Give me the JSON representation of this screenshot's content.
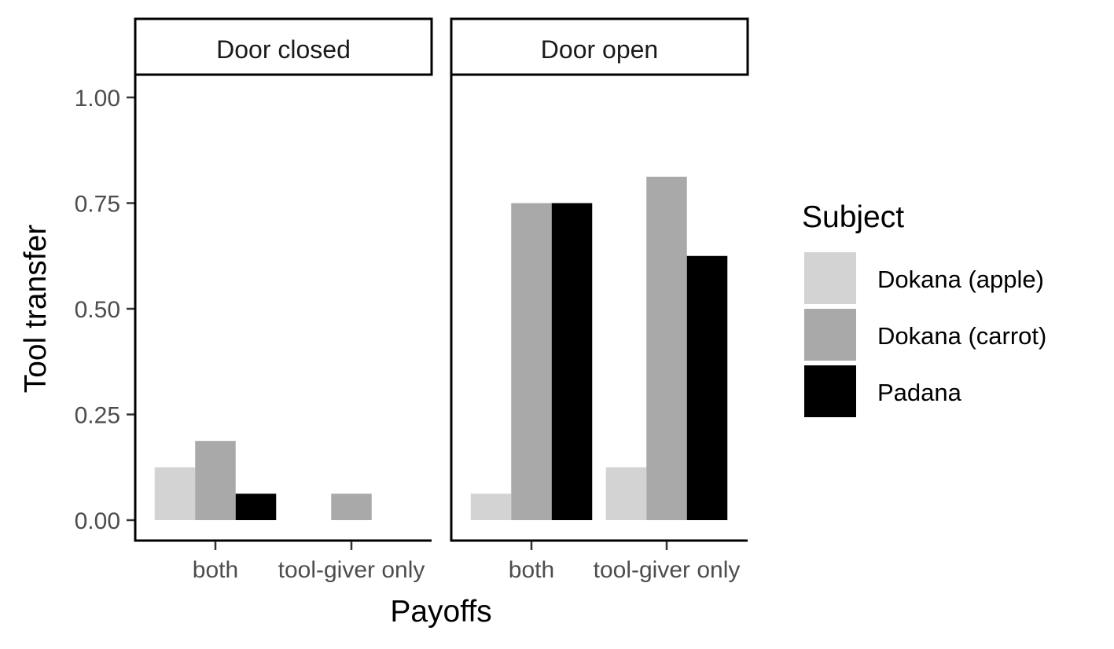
{
  "chart_data": {
    "type": "bar",
    "xlabel": "Payoffs",
    "ylabel": "Tool transfer",
    "ylim": [
      0,
      1
    ],
    "yticks": [
      "0.00",
      "0.25",
      "0.50",
      "0.75",
      "1.00"
    ],
    "categories": [
      "both",
      "tool-giver only"
    ],
    "legend": {
      "title": "Subject",
      "placement": "right",
      "entries": [
        {
          "name": "Dokana (apple)",
          "color": "#d3d3d3"
        },
        {
          "name": "Dokana (carrot)",
          "color": "#a9a9a9"
        },
        {
          "name": "Padana",
          "color": "#000000"
        }
      ]
    },
    "panels": [
      {
        "label": "Door closed",
        "groups": [
          {
            "category": "both",
            "bars": [
              {
                "series": "Dokana (apple)",
                "value": 0.125
              },
              {
                "series": "Dokana (carrot)",
                "value": 0.1875
              },
              {
                "series": "Padana",
                "value": 0.0625
              }
            ]
          },
          {
            "category": "tool-giver only",
            "bars": [
              {
                "series": "Dokana (carrot)",
                "value": 0.0625
              }
            ]
          }
        ]
      },
      {
        "label": "Door open",
        "groups": [
          {
            "category": "both",
            "bars": [
              {
                "series": "Dokana (apple)",
                "value": 0.0625
              },
              {
                "series": "Dokana (carrot)",
                "value": 0.75
              },
              {
                "series": "Padana",
                "value": 0.75
              }
            ]
          },
          {
            "category": "tool-giver only",
            "bars": [
              {
                "series": "Dokana (apple)",
                "value": 0.125
              },
              {
                "series": "Dokana (carrot)",
                "value": 0.8125
              },
              {
                "series": "Padana",
                "value": 0.625
              }
            ]
          }
        ]
      }
    ]
  }
}
